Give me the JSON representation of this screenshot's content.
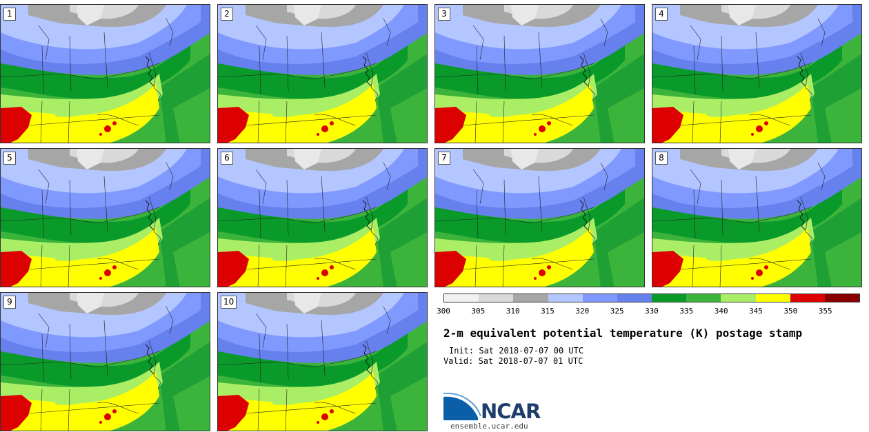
{
  "panels": [
    {
      "label": "1"
    },
    {
      "label": "2"
    },
    {
      "label": "3"
    },
    {
      "label": "4"
    },
    {
      "label": "5"
    },
    {
      "label": "6"
    },
    {
      "label": "7"
    },
    {
      "label": "8"
    },
    {
      "label": "9"
    },
    {
      "label": "10"
    }
  ],
  "colorbar": {
    "colors": [
      "#f2f2f2",
      "#d9d9d9",
      "#a6a6a6",
      "#b3c6ff",
      "#8099ff",
      "#6680ee",
      "#0a9a2a",
      "#3cb43c",
      "#aaee66",
      "#ffff00",
      "#dd0000",
      "#880000"
    ],
    "ticks": [
      "300",
      "305",
      "310",
      "315",
      "320",
      "325",
      "330",
      "335",
      "340",
      "345",
      "350",
      "355"
    ]
  },
  "title": "2-m equivalent potential temperature (K) postage stamp",
  "init": "Init: Sat 2018-07-07 00 UTC",
  "valid": "Valid: Sat 2018-07-07 01 UTC",
  "logo": {
    "name": "NCAR",
    "url": "ensemble.ucar.edu"
  }
}
